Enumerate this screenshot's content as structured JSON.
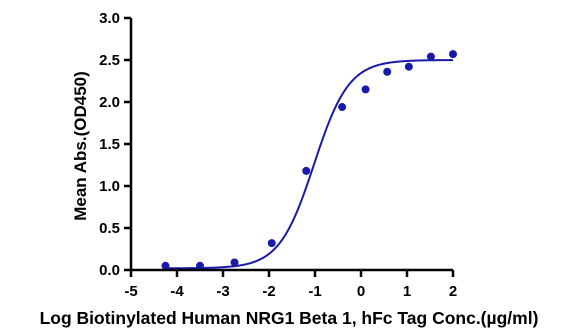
{
  "chart_data": {
    "type": "scatter",
    "title": "",
    "xlabel": "Log Biotinylated Human NRG1 Beta 1, hFc Tag Conc.(µg/ml)",
    "ylabel": "Mean Abs.(OD450)",
    "xlim": [
      -5,
      2
    ],
    "ylim": [
      0,
      3
    ],
    "x_ticks": [
      "-5",
      "-4",
      "-3",
      "-2",
      "-1",
      "0",
      "1",
      "2"
    ],
    "y_ticks": [
      "0.0",
      "0.5",
      "1.0",
      "1.5",
      "2.0",
      "2.5",
      "3.0"
    ],
    "grid": false,
    "legend": "none",
    "colors": {
      "points": "#1a1aa8",
      "curve": "#1a1aa8",
      "axis": "#000000"
    },
    "series": [
      {
        "points": [
          {
            "x": -4.25,
            "y": 0.05
          },
          {
            "x": -3.5,
            "y": 0.05
          },
          {
            "x": -2.75,
            "y": 0.09
          },
          {
            "x": -1.94,
            "y": 0.32
          },
          {
            "x": -1.19,
            "y": 1.18
          },
          {
            "x": -0.41,
            "y": 1.94
          },
          {
            "x": 0.1,
            "y": 2.15
          },
          {
            "x": 0.57,
            "y": 2.36
          },
          {
            "x": 1.04,
            "y": 2.42
          },
          {
            "x": 1.52,
            "y": 2.54
          },
          {
            "x": 2.0,
            "y": 2.57
          }
        ],
        "fit": {
          "model": "four-parameter logistic",
          "bottom": 0.02,
          "top": 2.5,
          "log_ec50": -1.02,
          "hill_slope": 1.15,
          "x_range": [
            -4.25,
            2.0
          ]
        }
      }
    ]
  }
}
